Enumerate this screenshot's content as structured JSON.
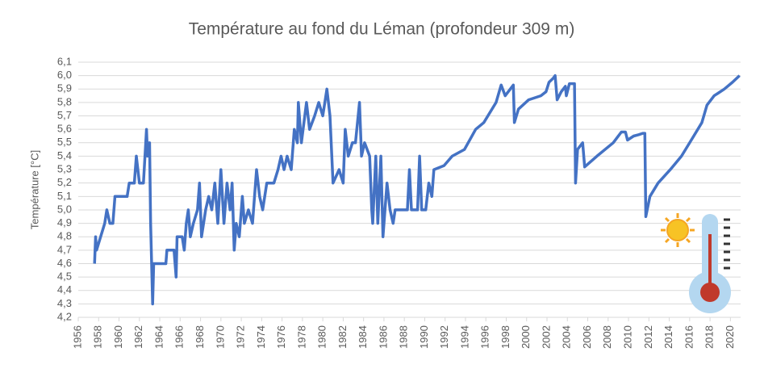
{
  "chart_data": {
    "type": "line",
    "title": "Température au fond du Léman (profondeur 309 m)",
    "y_label": "Température [°C]",
    "xlim": [
      1956,
      2021
    ],
    "xticks": [
      1956,
      1958,
      1960,
      1962,
      1964,
      1966,
      1968,
      1970,
      1972,
      1974,
      1976,
      1978,
      1980,
      1982,
      1984,
      1986,
      1988,
      1990,
      1992,
      1994,
      1996,
      1998,
      2000,
      2002,
      2004,
      2006,
      2008,
      2010,
      2012,
      2014,
      2016,
      2018,
      2020
    ],
    "ylim": [
      4.2,
      6.1
    ],
    "yticks": [
      {
        "value": 4.2,
        "label": "4,2"
      },
      {
        "value": 4.3,
        "label": "4,3"
      },
      {
        "value": 4.4,
        "label": "4,4"
      },
      {
        "value": 4.5,
        "label": "4,5"
      },
      {
        "value": 4.6,
        "label": "4,6"
      },
      {
        "value": 4.7,
        "label": "4,7"
      },
      {
        "value": 4.8,
        "label": "4,8"
      },
      {
        "value": 4.9,
        "label": "4,9"
      },
      {
        "value": 5.0,
        "label": "5,0"
      },
      {
        "value": 5.1,
        "label": "5,1"
      },
      {
        "value": 5.2,
        "label": "5,2"
      },
      {
        "value": 5.3,
        "label": "5,3"
      },
      {
        "value": 5.4,
        "label": "5,4"
      },
      {
        "value": 5.5,
        "label": "5,5"
      },
      {
        "value": 5.6,
        "label": "5,6"
      },
      {
        "value": 5.7,
        "label": "5,7"
      },
      {
        "value": 5.8,
        "label": "5,8"
      },
      {
        "value": 5.9,
        "label": "5,9"
      },
      {
        "value": 6.0,
        "label": "6,0"
      },
      {
        "value": 6.1,
        "label": "6,1"
      }
    ],
    "grid": true,
    "color": "#4472c4",
    "x": [
      1957.6,
      1957.7,
      1957.8,
      1958.6,
      1958.8,
      1959.1,
      1959.4,
      1959.6,
      1960.8,
      1961.0,
      1961.5,
      1961.7,
      1962.0,
      1962.4,
      1962.7,
      1962.8,
      1963.0,
      1963.1,
      1963.3,
      1963.4,
      1964.6,
      1964.7,
      1965.4,
      1965.6,
      1965.7,
      1966.2,
      1966.4,
      1966.6,
      1966.8,
      1967.0,
      1967.3,
      1967.7,
      1967.9,
      1968.1,
      1968.5,
      1968.8,
      1969.1,
      1969.4,
      1969.7,
      1970.0,
      1970.3,
      1970.6,
      1970.9,
      1971.1,
      1971.3,
      1971.5,
      1971.8,
      1972.1,
      1972.3,
      1972.7,
      1973.1,
      1973.5,
      1973.8,
      1974.1,
      1974.5,
      1975.2,
      1975.6,
      1975.9,
      1976.2,
      1976.5,
      1976.9,
      1977.2,
      1977.5,
      1977.6,
      1977.9,
      1978.4,
      1978.7,
      1979.2,
      1979.6,
      1980.0,
      1980.4,
      1980.7,
      1981.0,
      1981.6,
      1982.0,
      1982.2,
      1982.5,
      1982.9,
      1983.2,
      1983.6,
      1983.8,
      1984.1,
      1984.6,
      1984.8,
      1984.9,
      1985.2,
      1985.4,
      1985.7,
      1985.9,
      1986.3,
      1986.6,
      1986.9,
      1987.1,
      1988.3,
      1988.5,
      1988.7,
      1989.3,
      1989.5,
      1989.7,
      1990.1,
      1990.4,
      1990.7,
      1990.9,
      1991.9,
      1992.7,
      1993.9,
      1995.0,
      1995.8,
      1997.0,
      1997.5,
      1997.9,
      1998.4,
      1998.7,
      1998.8,
      1999.2,
      2000.2,
      2001.4,
      2001.9,
      2002.2,
      2002.6,
      2002.8,
      2003.0,
      2003.4,
      2003.8,
      2003.9,
      2004.2,
      2004.7,
      2004.8,
      2005.0,
      2005.5,
      2005.7,
      2006.9,
      2008.5,
      2009.3,
      2009.7,
      2009.9,
      2010.5,
      2011.0,
      2011.4,
      2011.6,
      2011.7,
      2012.1,
      2012.9,
      2014.1,
      2015.2,
      2016.4,
      2017.2,
      2017.7,
      2018.4,
      2019.4,
      2020.2,
      2020.9
    ],
    "values": [
      4.6,
      4.8,
      4.7,
      4.9,
      5.0,
      4.9,
      4.9,
      5.1,
      5.1,
      5.2,
      5.2,
      5.4,
      5.2,
      5.2,
      5.6,
      5.4,
      5.5,
      4.9,
      4.3,
      4.6,
      4.6,
      4.7,
      4.7,
      4.5,
      4.8,
      4.8,
      4.7,
      4.9,
      5.0,
      4.8,
      4.9,
      5.0,
      5.2,
      4.8,
      5.0,
      5.1,
      5.0,
      5.2,
      4.9,
      5.3,
      4.9,
      5.2,
      5.0,
      5.2,
      4.7,
      4.9,
      4.8,
      5.1,
      4.9,
      5.0,
      4.9,
      5.3,
      5.1,
      5.0,
      5.2,
      5.2,
      5.3,
      5.4,
      5.3,
      5.4,
      5.3,
      5.6,
      5.5,
      5.8,
      5.5,
      5.8,
      5.6,
      5.7,
      5.8,
      5.7,
      5.9,
      5.7,
      5.2,
      5.3,
      5.2,
      5.6,
      5.4,
      5.5,
      5.5,
      5.8,
      5.4,
      5.5,
      5.4,
      5.0,
      4.9,
      5.4,
      4.9,
      5.4,
      4.8,
      5.2,
      5.0,
      4.9,
      5.0,
      5.0,
      5.3,
      5.0,
      5.0,
      5.4,
      5.0,
      5.0,
      5.2,
      5.1,
      5.3,
      5.33,
      5.4,
      5.45,
      5.6,
      5.65,
      5.8,
      5.93,
      5.85,
      5.9,
      5.93,
      5.65,
      5.75,
      5.82,
      5.85,
      5.88,
      5.95,
      5.98,
      6.0,
      5.82,
      5.88,
      5.92,
      5.85,
      5.94,
      5.94,
      5.2,
      5.45,
      5.5,
      5.32,
      5.4,
      5.5,
      5.58,
      5.58,
      5.52,
      5.55,
      5.56,
      5.57,
      5.57,
      4.95,
      5.1,
      5.2,
      5.3,
      5.4,
      5.55,
      5.65,
      5.78,
      5.85,
      5.9,
      5.95,
      6.0
    ]
  }
}
